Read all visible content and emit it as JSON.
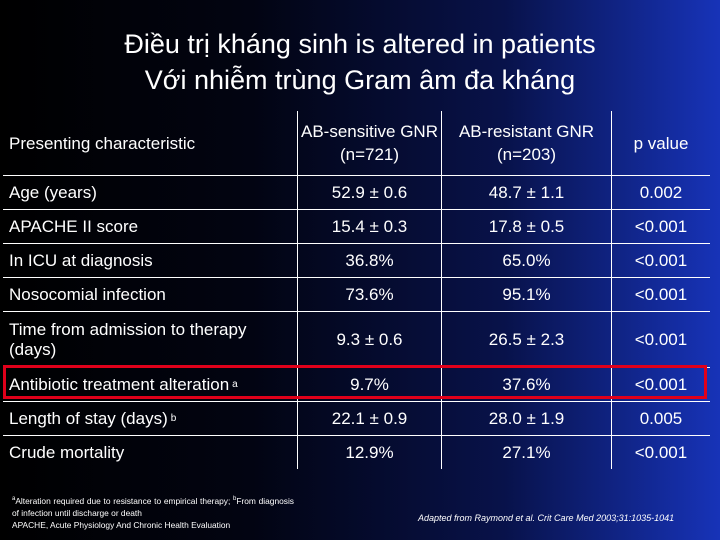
{
  "title": {
    "line1": "Điều trị kháng sinh is altered in patients",
    "line2": "Với nhiễm trùng Gram âm đa kháng"
  },
  "table": {
    "headers": [
      "Presenting characteristic",
      "AB-sensitive GNR (n=721)",
      "AB-resistant GNR (n=203)",
      "p value"
    ],
    "rows": [
      {
        "label": "Age (years)",
        "sup": "",
        "sensitive": "52.9 ± 0.6",
        "resistant": "48.7 ± 1.1",
        "p": "0.002"
      },
      {
        "label": "APACHE II score",
        "sup": "",
        "sensitive": "15.4 ± 0.3",
        "resistant": "17.8 ± 0.5",
        "p": "<0.001"
      },
      {
        "label": "In ICU at diagnosis",
        "sup": "",
        "sensitive": "36.8%",
        "resistant": "65.0%",
        "p": "<0.001"
      },
      {
        "label": "Nosocomial infection",
        "sup": "",
        "sensitive": "73.6%",
        "resistant": "95.1%",
        "p": "<0.001"
      },
      {
        "label": "Time from admission to therapy (days)",
        "sup": "",
        "sensitive": "9.3 ± 0.6",
        "resistant": "26.5 ± 2.3",
        "p": "<0.001"
      },
      {
        "label": "Antibiotic treatment alteration",
        "sup": "a",
        "sensitive": "9.7%",
        "resistant": "37.6%",
        "p": "<0.001"
      },
      {
        "label": "Length of stay (days)",
        "sup": "b",
        "sensitive": "22.1 ± 0.9",
        "resistant": "28.0 ± 1.9",
        "p": "0.005"
      },
      {
        "label": "Crude mortality",
        "sup": "",
        "sensitive": "12.9%",
        "resistant": "27.1%",
        "p": "<0.001"
      }
    ]
  },
  "footnotes": {
    "a_mark": "a",
    "a_text": "Alteration required due to resistance to empirical therapy;",
    "b_mark": "b",
    "b_text": "From diagnosis of infection until discharge or death",
    "apache": "APACHE, Acute Physiology And Chronic Health Evaluation"
  },
  "source": "Adapted from Raymond et al. Crit Care Med 2003;31:1035-1041",
  "colors": {
    "highlight": "#e0001a",
    "background_right": "#1733b8"
  }
}
